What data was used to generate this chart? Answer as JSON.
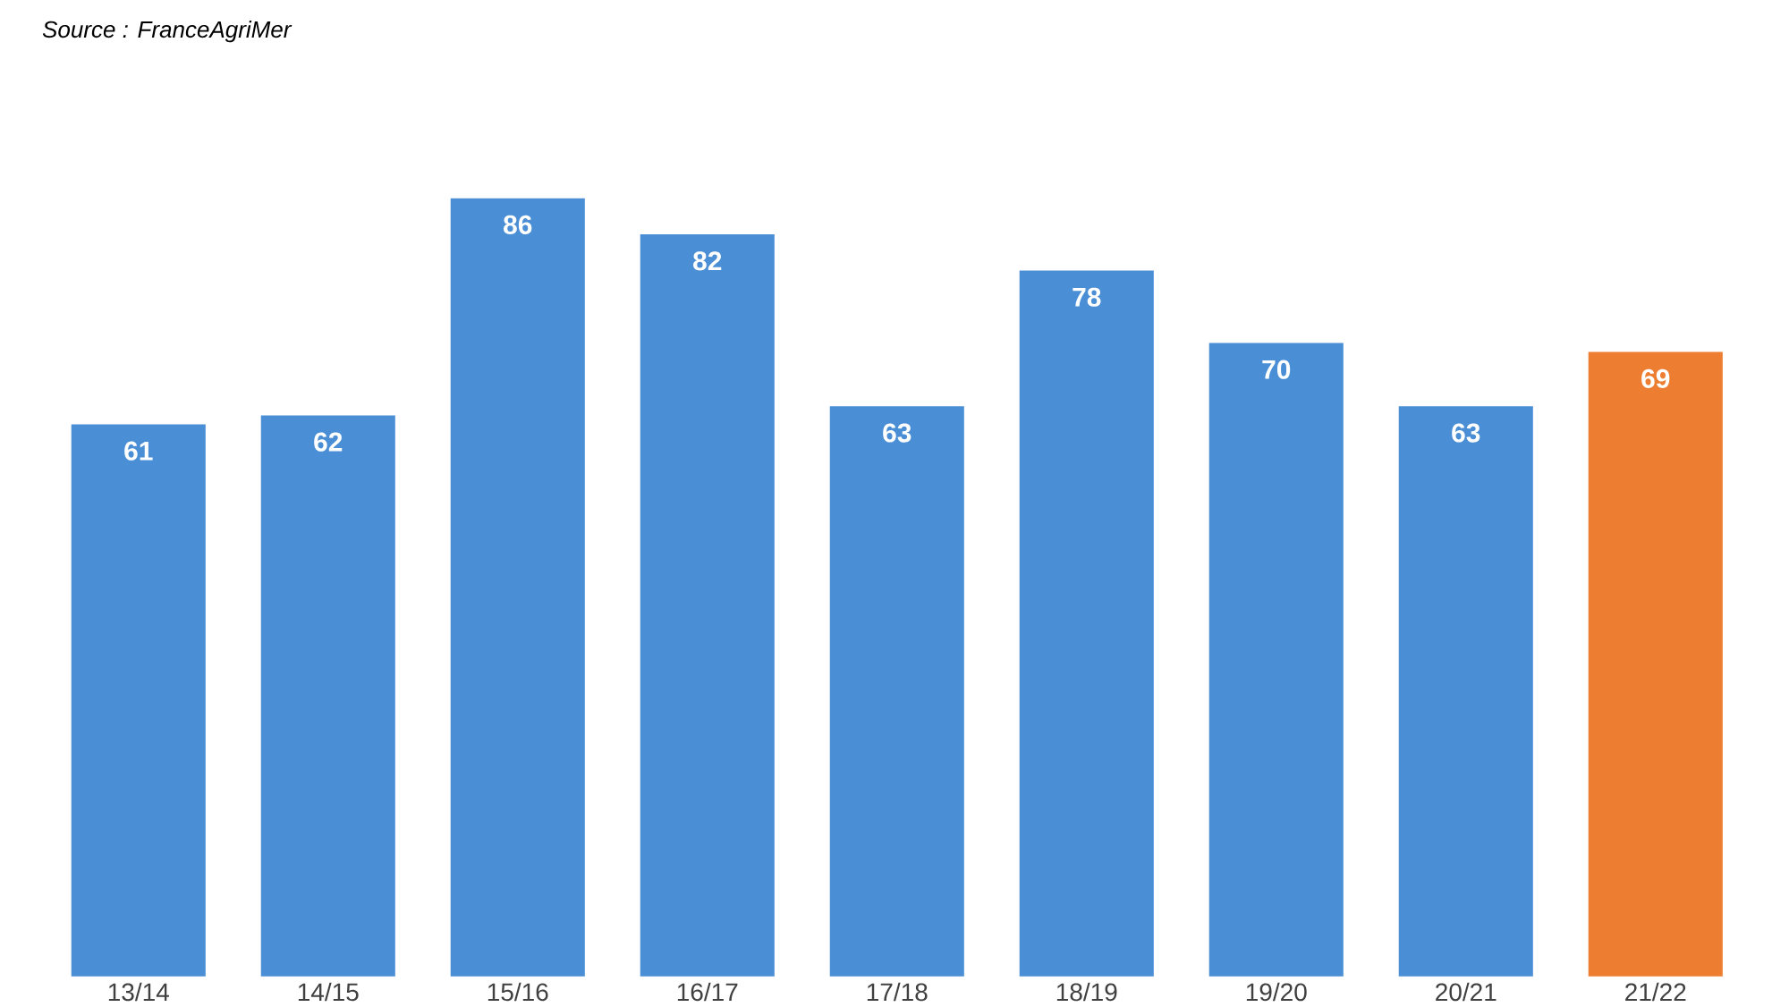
{
  "chart_data": {
    "type": "bar",
    "categories": [
      "13/14",
      "14/15",
      "15/16",
      "16/17",
      "17/18",
      "18/19",
      "19/20",
      "20/21",
      "21/22"
    ],
    "values": [
      61,
      62,
      86,
      82,
      63,
      78,
      70,
      63,
      69
    ],
    "colors": [
      "#4a8fd6",
      "#4a8fd6",
      "#4a8fd6",
      "#4a8fd6",
      "#4a8fd6",
      "#4a8fd6",
      "#4a8fd6",
      "#4a8fd6",
      "#ed7d31"
    ],
    "data_labels": true,
    "annotations": [
      "Source : FranceAgriMer"
    ]
  }
}
